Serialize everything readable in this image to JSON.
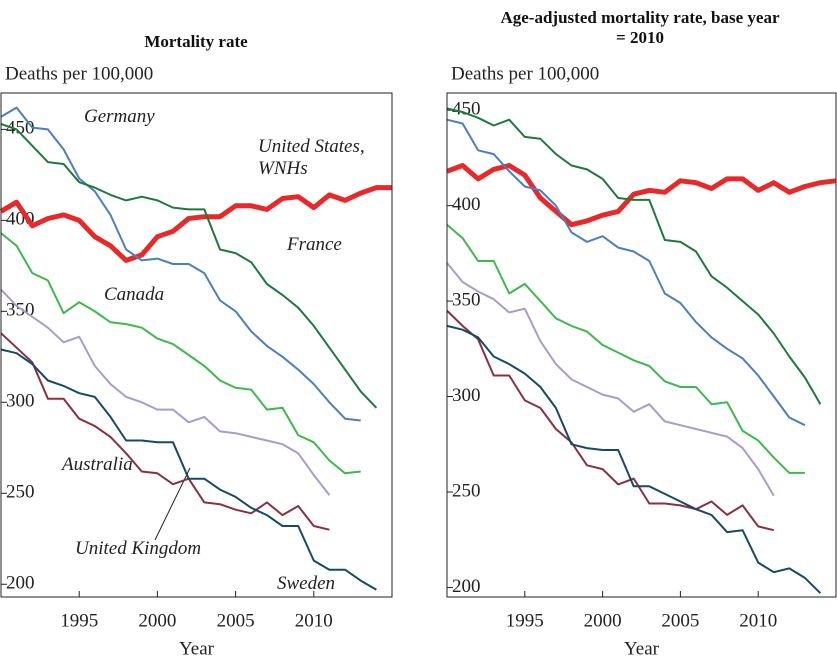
{
  "chart_data": [
    {
      "type": "line",
      "title": "Mortality rate",
      "y_label": "Deaths per 100,000",
      "x_label": "Year",
      "x": [
        1990,
        1991,
        1992,
        1993,
        1994,
        1995,
        1996,
        1997,
        1998,
        1999,
        2000,
        2001,
        2002,
        2003,
        2004,
        2005,
        2006,
        2007,
        2008,
        2009,
        2010,
        2011,
        2012,
        2013,
        2014,
        2015
      ],
      "xlim": [
        1990,
        2015
      ],
      "ylim": [
        193,
        470
      ],
      "xticks": [
        1995,
        2000,
        2005,
        2010
      ],
      "yticks": [
        200,
        250,
        300,
        350,
        400,
        450
      ],
      "series": [
        {
          "name": "United States, WNHs",
          "color": "#e8292a",
          "values": [
            405,
            410,
            397,
            401,
            403,
            400,
            391,
            386,
            378,
            381,
            391,
            394,
            401,
            402,
            402,
            408,
            408,
            406,
            412,
            413,
            407,
            414,
            411,
            415,
            418,
            418
          ]
        },
        {
          "name": "Germany",
          "color": "#4a7fc1",
          "values": [
            457,
            462,
            451,
            450,
            439,
            423,
            416,
            403,
            384,
            378,
            379,
            376,
            376,
            371,
            356,
            350,
            339,
            331,
            325,
            318,
            310,
            300,
            291,
            290,
            null,
            null
          ]
        },
        {
          "name": "France",
          "color": "#1f7a3a",
          "values": [
            453,
            450,
            441,
            432,
            431,
            421,
            418,
            414,
            411,
            413,
            411,
            407,
            406,
            406,
            384,
            382,
            377,
            365,
            359,
            352,
            342,
            330,
            318,
            306,
            297,
            null
          ]
        },
        {
          "name": "Canada",
          "color": "#3dba4a",
          "values": [
            393,
            386,
            371,
            367,
            349,
            355,
            350,
            344,
            343,
            341,
            335,
            332,
            326,
            320,
            312,
            308,
            307,
            296,
            297,
            282,
            278,
            268,
            261,
            262,
            null,
            null
          ]
        },
        {
          "name": "Australia",
          "color": "#8b3040",
          "values": [
            338,
            330,
            322,
            302,
            302,
            291,
            287,
            281,
            272,
            262,
            261,
            255,
            258,
            245,
            244,
            241,
            239,
            245,
            238,
            243,
            232,
            230,
            null,
            null,
            null,
            null
          ]
        },
        {
          "name": "United Kingdom",
          "color": "#a99bd0",
          "values": [
            362,
            353,
            347,
            341,
            333,
            336,
            320,
            310,
            303,
            300,
            296,
            296,
            289,
            292,
            284,
            283,
            281,
            279,
            277,
            272,
            260,
            249,
            null,
            null,
            null,
            null
          ]
        },
        {
          "name": "Sweden",
          "color": "#144a6a",
          "values": [
            329,
            327,
            321,
            312,
            309,
            305,
            303,
            292,
            279,
            279,
            278,
            278,
            258,
            258,
            252,
            248,
            242,
            238,
            232,
            232,
            213,
            208,
            208,
            202,
            197,
            null
          ]
        }
      ]
    },
    {
      "type": "line",
      "title": "Age-adjusted mortality rate, base year = 2010",
      "y_label": "Deaths per 100,000",
      "x_label": "Year",
      "x": [
        1990,
        1991,
        1992,
        1993,
        1994,
        1995,
        1996,
        1997,
        1998,
        1999,
        2000,
        2001,
        2002,
        2003,
        2004,
        2005,
        2006,
        2007,
        2008,
        2009,
        2010,
        2011,
        2012,
        2013,
        2014,
        2015
      ],
      "xlim": [
        1990,
        2015
      ],
      "ylim": [
        195,
        459
      ],
      "xticks": [
        1995,
        2000,
        2005,
        2010
      ],
      "yticks": [
        200,
        250,
        300,
        350,
        400,
        450
      ],
      "series": [
        {
          "color": "#e8292a",
          "values": [
            418,
            421,
            414,
            419,
            421,
            416,
            404,
            397,
            390,
            392,
            395,
            397,
            406,
            408,
            407,
            413,
            412,
            409,
            414,
            414,
            408,
            412,
            407,
            410,
            412,
            413
          ]
        },
        {
          "color": "#4a7fc1",
          "values": [
            445,
            443,
            429,
            427,
            418,
            410,
            408,
            400,
            386,
            381,
            384,
            378,
            376,
            371,
            354,
            349,
            339,
            331,
            325,
            320,
            311,
            300,
            289,
            285,
            null,
            null
          ]
        },
        {
          "color": "#1f7a3a",
          "values": [
            451,
            449,
            446,
            442,
            445,
            436,
            435,
            427,
            421,
            419,
            414,
            404,
            403,
            403,
            382,
            381,
            376,
            363,
            357,
            350,
            343,
            333,
            321,
            310,
            296,
            null
          ]
        },
        {
          "color": "#3dba4a",
          "values": [
            390,
            383,
            371,
            371,
            354,
            359,
            350,
            341,
            337,
            334,
            327,
            323,
            319,
            316,
            308,
            305,
            305,
            296,
            297,
            282,
            277,
            268,
            260,
            260,
            null,
            null
          ]
        },
        {
          "color": "#8b3040",
          "values": [
            345,
            337,
            330,
            311,
            311,
            298,
            294,
            283,
            276,
            264,
            262,
            254,
            257,
            244,
            244,
            243,
            241,
            245,
            238,
            243,
            232,
            230,
            null,
            null,
            null,
            null
          ]
        },
        {
          "color": "#a99bd0",
          "values": [
            370,
            360,
            355,
            351,
            344,
            346,
            329,
            317,
            309,
            305,
            301,
            299,
            292,
            296,
            287,
            285,
            283,
            281,
            279,
            273,
            262,
            248,
            null,
            null,
            null,
            null
          ]
        },
        {
          "color": "#144a6a",
          "values": [
            337,
            335,
            331,
            321,
            317,
            312,
            305,
            294,
            275,
            273,
            272,
            272,
            253,
            253,
            249,
            245,
            241,
            238,
            229,
            230,
            213,
            208,
            210,
            205,
            197,
            null
          ]
        }
      ]
    }
  ]
}
